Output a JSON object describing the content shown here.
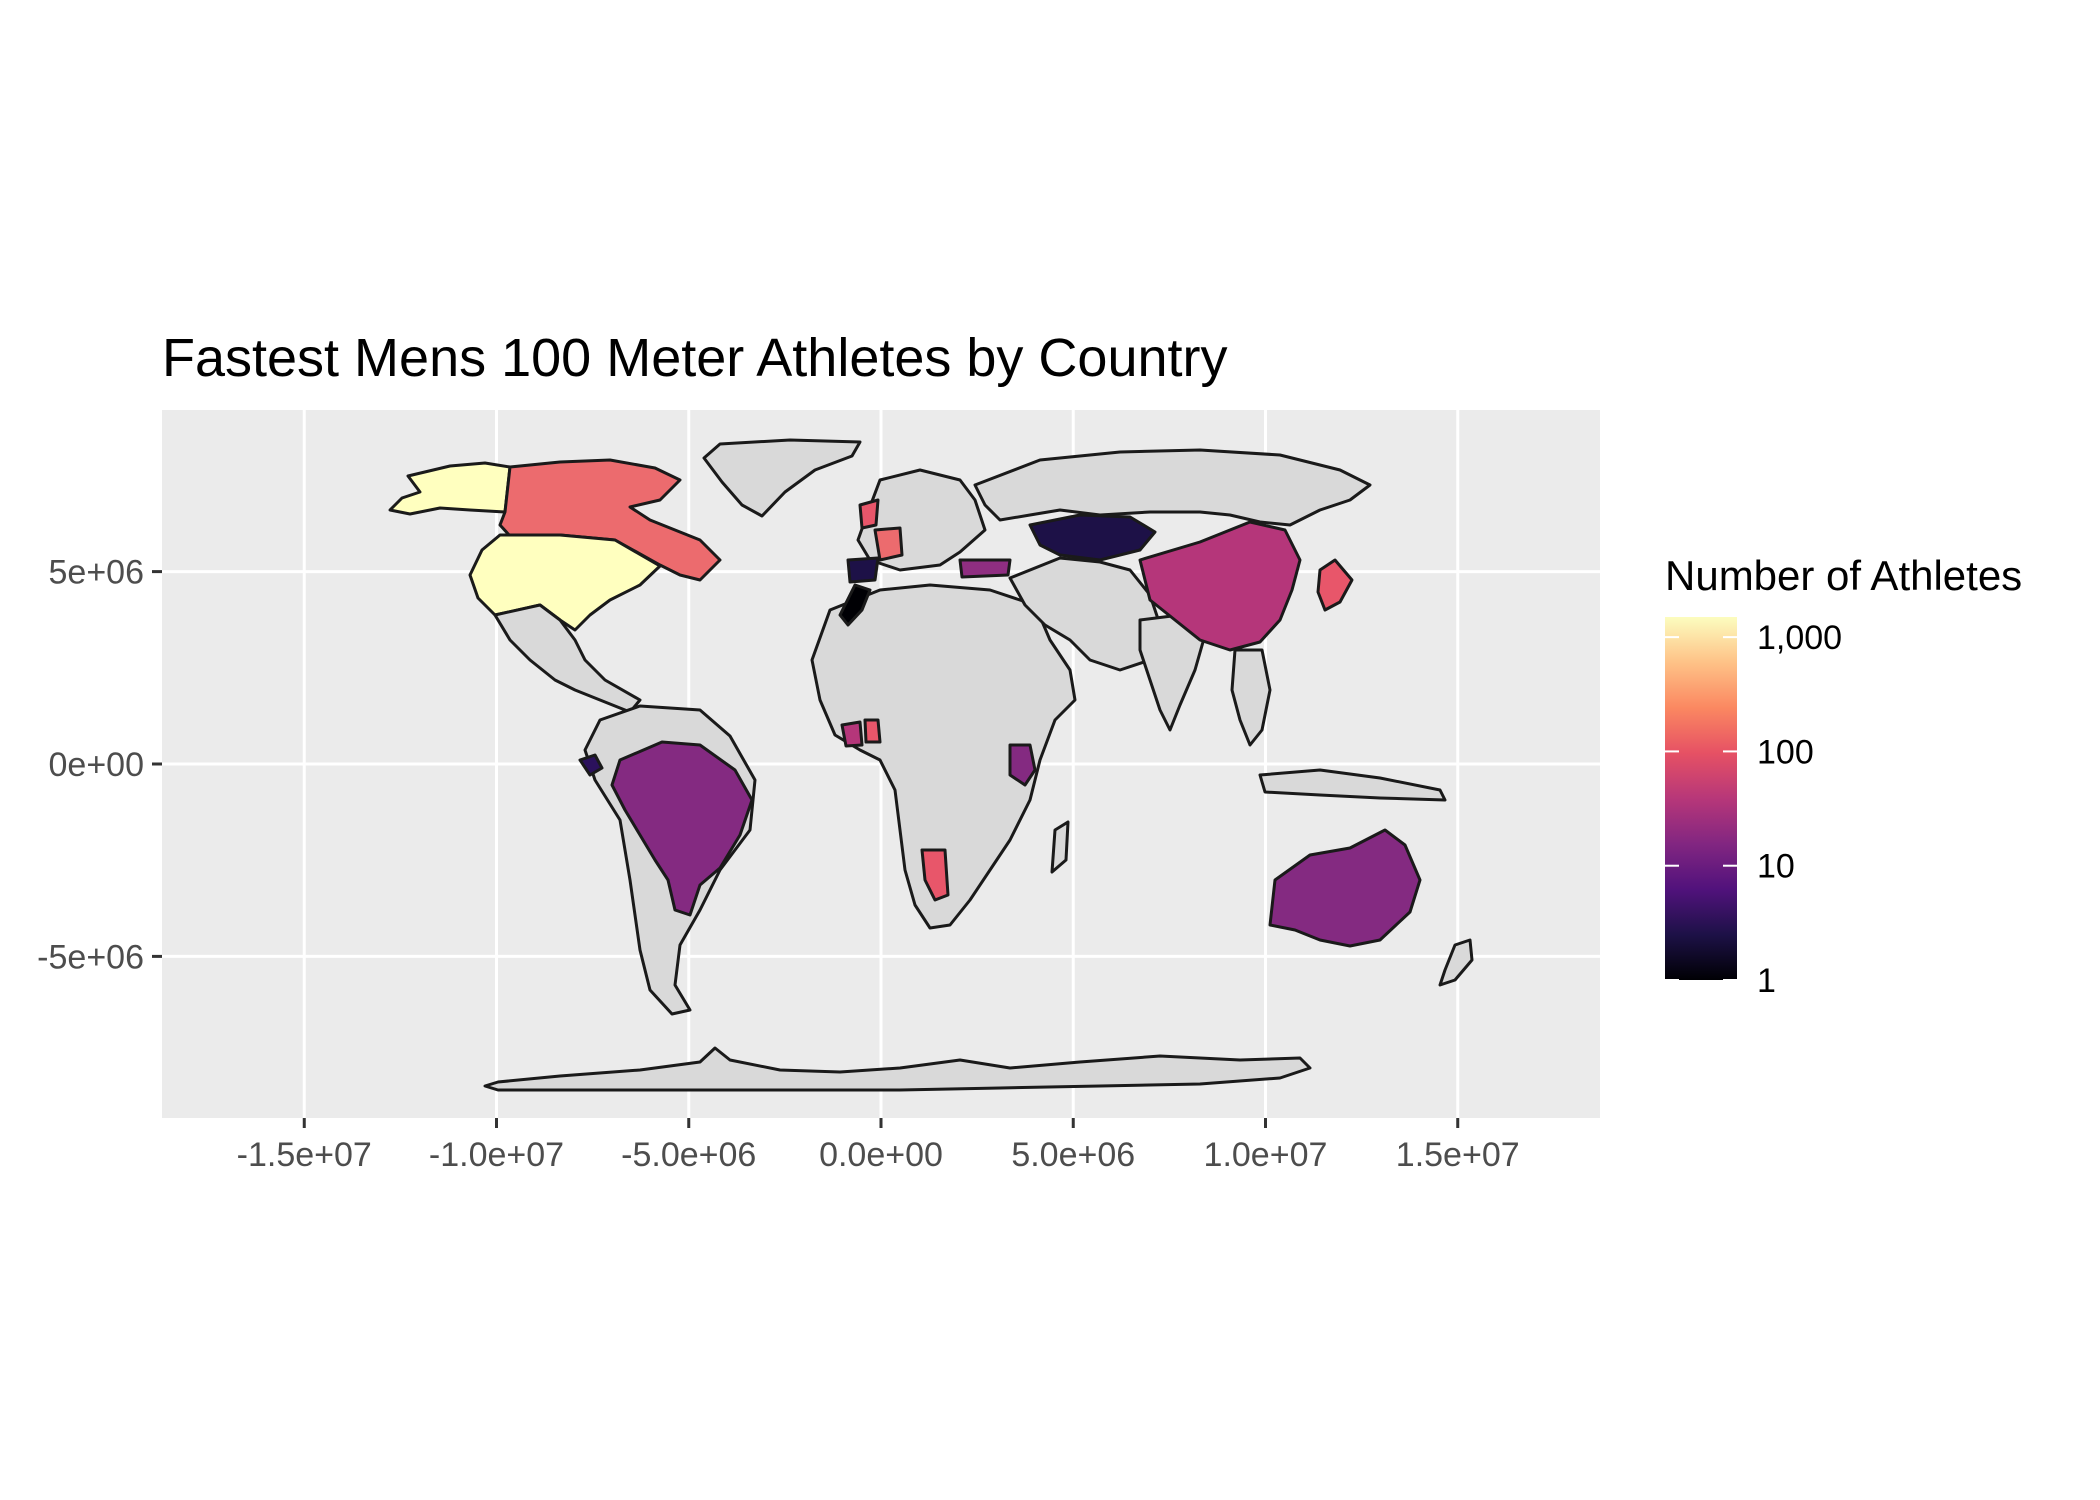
{
  "chart_data": {
    "type": "choropleth",
    "title": "Fastest Mens 100 Meter Athletes by Country",
    "xlabel": "",
    "ylabel": "",
    "x_ticks": [
      {
        "value": -15000000,
        "label": "-1.5e+07"
      },
      {
        "value": -10000000,
        "label": "-1.0e+07"
      },
      {
        "value": -5000000,
        "label": "-5.0e+06"
      },
      {
        "value": 0,
        "label": "0.0e+00"
      },
      {
        "value": 5000000,
        "label": "5.0e+06"
      },
      {
        "value": 10000000,
        "label": "1.0e+07"
      },
      {
        "value": 15000000,
        "label": "1.5e+07"
      }
    ],
    "y_ticks": [
      {
        "value": 5000000,
        "label": "5e+06"
      },
      {
        "value": 0,
        "label": "0e+00"
      },
      {
        "value": -5000000,
        "label": "-5e+06"
      }
    ],
    "xlim": [
      -18700000,
      18700000
    ],
    "ylim": [
      -9200000,
      9200000
    ],
    "legend": {
      "title": "Number of Athletes",
      "scale": "log10",
      "domain": [
        1,
        1500
      ],
      "breaks": [
        {
          "value": 1000,
          "label": "1,000"
        },
        {
          "value": 100,
          "label": "100"
        },
        {
          "value": 10,
          "label": "10"
        },
        {
          "value": 1,
          "label": "1"
        }
      ],
      "palette": [
        "#000004",
        "#1d1147",
        "#51127c",
        "#822681",
        "#b73779",
        "#e65164",
        "#fb8861",
        "#fec287",
        "#fcfdbf"
      ],
      "placement": "right"
    },
    "no_data_color": "#d9d9d9",
    "countries": [
      {
        "name": "United States",
        "value": 1000
      },
      {
        "name": "Canada",
        "value": 100
      },
      {
        "name": "Brazil",
        "value": 10
      },
      {
        "name": "China",
        "value": 30
      },
      {
        "name": "Australia",
        "value": 10
      },
      {
        "name": "Japan",
        "value": 60
      },
      {
        "name": "Kazakhstan",
        "value": 2
      },
      {
        "name": "Namibia",
        "value": 60
      },
      {
        "name": "Kenya",
        "value": 10
      },
      {
        "name": "United Kingdom",
        "value": 60
      },
      {
        "name": "France",
        "value": 80
      },
      {
        "name": "Spain",
        "value": 3
      },
      {
        "name": "Morocco",
        "value": 1
      },
      {
        "name": "Turkey",
        "value": 15
      },
      {
        "name": "Ecuador",
        "value": 3
      },
      {
        "name": "Cote d'Ivoire",
        "value": 30
      },
      {
        "name": "Ghana",
        "value": 60
      }
    ]
  }
}
